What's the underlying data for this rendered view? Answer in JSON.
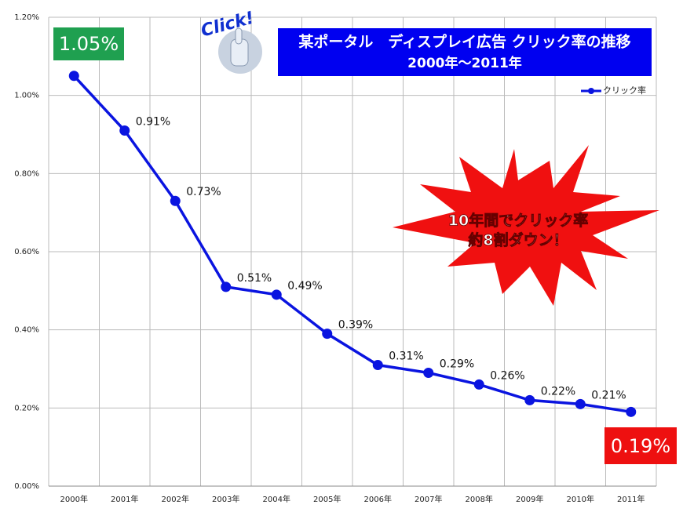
{
  "chart_data": {
    "type": "line",
    "title": "某ポータル　ディスプレイ広告 クリック率の推移",
    "subtitle": "2000年～2011年",
    "annotation": [
      "10年間でクリック率",
      "約8割ダウン！"
    ],
    "badge": "Click!",
    "categories": [
      "2000年",
      "2001年",
      "2002年",
      "2003年",
      "2004年",
      "2005年",
      "2006年",
      "2007年",
      "2008年",
      "2009年",
      "2010年",
      "2011年"
    ],
    "series": [
      {
        "name": "クリック率",
        "color": "#0a14e0",
        "values": [
          1.05,
          0.91,
          0.73,
          0.51,
          0.49,
          0.39,
          0.31,
          0.29,
          0.26,
          0.22,
          0.21,
          0.19
        ],
        "value_labels": [
          "1.05%",
          "0.91%",
          "0.73%",
          "0.51%",
          "0.49%",
          "0.39%",
          "0.31%",
          "0.29%",
          "0.26%",
          "0.22%",
          "0.21%",
          "0.19%"
        ]
      }
    ],
    "ylim": [
      0,
      1.2
    ],
    "yticks": [
      {
        "value": 0,
        "label": "0.00%"
      },
      {
        "value": 0.2,
        "label": "0.20%"
      },
      {
        "value": 0.4,
        "label": "0.40%"
      },
      {
        "value": 0.6,
        "label": "0.60%"
      },
      {
        "value": 0.8,
        "label": "0.80%"
      },
      {
        "value": 1.0,
        "label": "1.00%"
      },
      {
        "value": 1.2,
        "label": "1.20%"
      }
    ],
    "grid": true,
    "legend": "top-right"
  }
}
